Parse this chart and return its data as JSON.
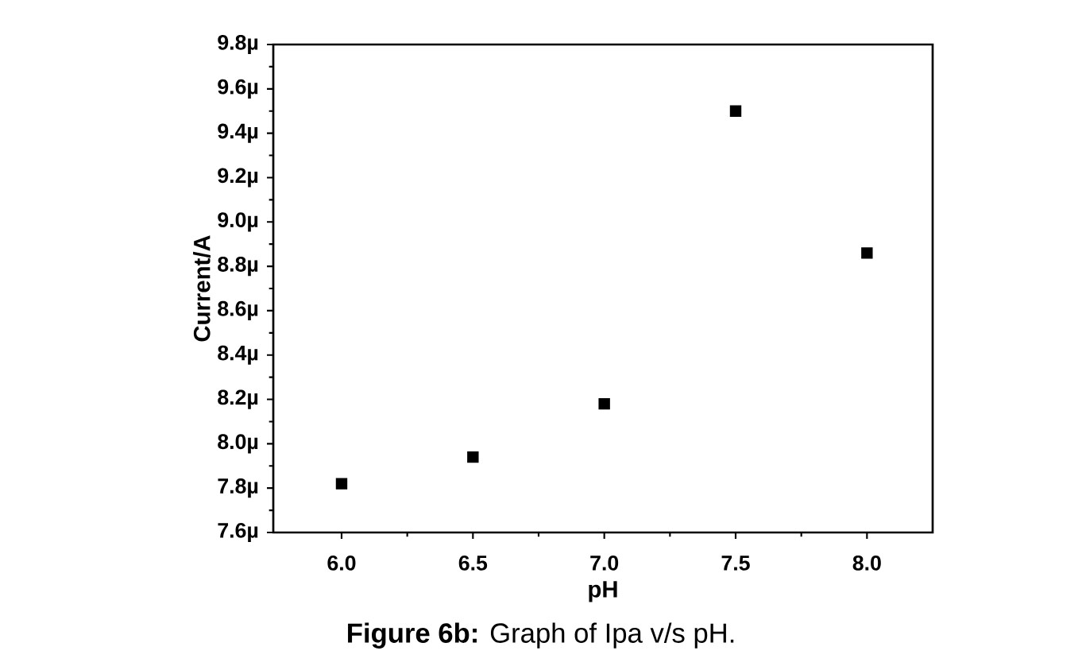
{
  "chart_data": {
    "type": "scatter",
    "xlabel": "pH",
    "ylabel": "Current/A",
    "annotations": [
      "**Figure 6b:** Graph of Ipa v/s pH."
    ],
    "x": [
      6.0,
      6.5,
      7.0,
      7.5,
      8.0
    ],
    "series": [
      {
        "color": "#000000",
        "values": [
          7.82,
          7.94,
          8.18,
          9.5,
          8.86
        ]
      }
    ],
    "marker": "square",
    "xlim": [
      5.74,
      8.25
    ],
    "xticks": [
      {
        "value": 6.0,
        "label": "6.0"
      },
      6.5,
      {
        "value": 7.0,
        "label": "7.0"
      },
      7.5,
      {
        "value": 8.0,
        "label": "8.0"
      }
    ],
    "ylim": [
      7.6,
      9.8
    ],
    "yticks": [
      {
        "value": 7.6,
        "label": "7.6µ"
      },
      {
        "value": 7.8,
        "label": "7.8µ"
      },
      {
        "value": 8.0,
        "label": "8.0µ"
      },
      {
        "value": 8.2,
        "label": "8.2µ"
      },
      {
        "value": 8.4,
        "label": "8.4µ"
      },
      {
        "value": 8.6,
        "label": "8.6µ"
      },
      {
        "value": 8.8,
        "label": "8.8µ"
      },
      {
        "value": 9.0,
        "label": "9.0µ"
      },
      {
        "value": 9.2,
        "label": "9.2µ"
      },
      {
        "value": 9.4,
        "label": "9.4µ"
      },
      {
        "value": 9.6,
        "label": "9.6µ"
      },
      {
        "value": 9.8,
        "label": "9.8µ"
      }
    ],
    "grid": false
  }
}
